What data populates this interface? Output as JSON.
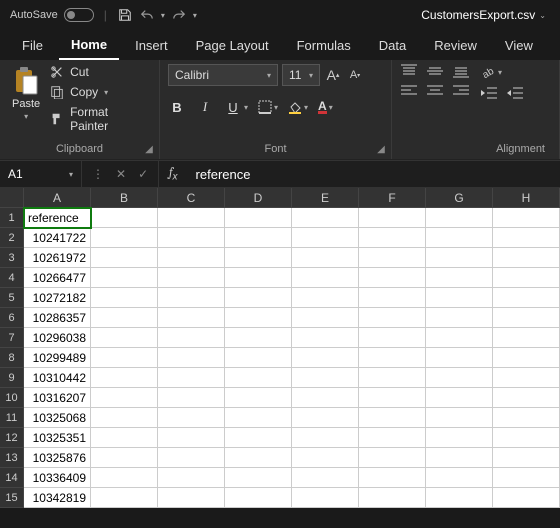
{
  "titlebar": {
    "autosave_label": "AutoSave",
    "file_title": "CustomersExport.csv"
  },
  "tabs": {
    "file": "File",
    "home": "Home",
    "insert": "Insert",
    "page_layout": "Page Layout",
    "formulas": "Formulas",
    "data": "Data",
    "review": "Review",
    "view": "View"
  },
  "ribbon": {
    "clipboard": {
      "paste": "Paste",
      "cut": "Cut",
      "copy": "Copy",
      "format_painter": "Format Painter",
      "group_label": "Clipboard"
    },
    "font": {
      "name": "Calibri",
      "size": "11",
      "group_label": "Font"
    },
    "alignment": {
      "group_label": "Alignment"
    }
  },
  "formula_bar": {
    "name_box": "A1",
    "content": "reference"
  },
  "grid": {
    "columns": [
      "A",
      "B",
      "C",
      "D",
      "E",
      "F",
      "G",
      "H"
    ],
    "rows": [
      {
        "n": "1",
        "a": "reference",
        "align": "left",
        "selected": true
      },
      {
        "n": "2",
        "a": "10241722",
        "align": "right"
      },
      {
        "n": "3",
        "a": "10261972",
        "align": "right"
      },
      {
        "n": "4",
        "a": "10266477",
        "align": "right"
      },
      {
        "n": "5",
        "a": "10272182",
        "align": "right"
      },
      {
        "n": "6",
        "a": "10286357",
        "align": "right"
      },
      {
        "n": "7",
        "a": "10296038",
        "align": "right"
      },
      {
        "n": "8",
        "a": "10299489",
        "align": "right"
      },
      {
        "n": "9",
        "a": "10310442",
        "align": "right"
      },
      {
        "n": "10",
        "a": "10316207",
        "align": "right"
      },
      {
        "n": "11",
        "a": "10325068",
        "align": "right"
      },
      {
        "n": "12",
        "a": "10325351",
        "align": "right"
      },
      {
        "n": "13",
        "a": "10325876",
        "align": "right"
      },
      {
        "n": "14",
        "a": "10336409",
        "align": "right"
      },
      {
        "n": "15",
        "a": "10342819",
        "align": "right"
      }
    ]
  },
  "colors": {
    "ribbon_bg": "#2b2b2b",
    "header_bg": "#333333",
    "cell_bg": "#ffffff",
    "selection": "#0f7b0f"
  }
}
